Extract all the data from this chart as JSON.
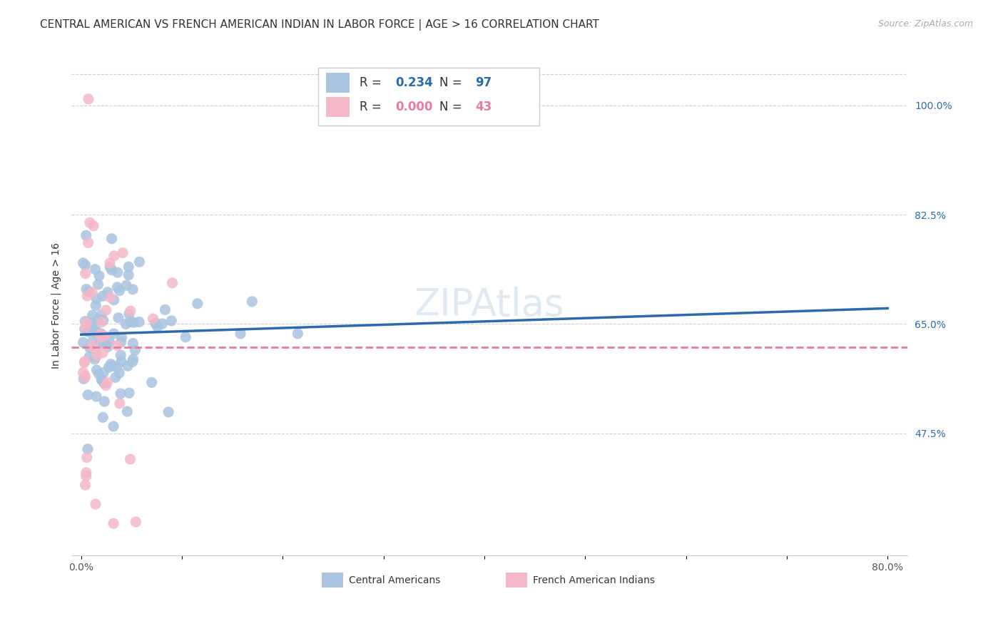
{
  "title": "CENTRAL AMERICAN VS FRENCH AMERICAN INDIAN IN LABOR FORCE | AGE > 16 CORRELATION CHART",
  "source": "Source: ZipAtlas.com",
  "ylabel": "In Labor Force | Age > 16",
  "xlim": [
    -0.01,
    0.82
  ],
  "ylim": [
    0.28,
    1.08
  ],
  "yticks": [
    0.475,
    0.65,
    0.825,
    1.0
  ],
  "ytick_labels": [
    "47.5%",
    "65.0%",
    "82.5%",
    "100.0%"
  ],
  "blue_R": "0.234",
  "blue_N": "97",
  "pink_R": "0.000",
  "pink_N": "43",
  "blue_color": "#a8c4e0",
  "pink_color": "#f4b8c8",
  "blue_line_color": "#2a6aad",
  "pink_line_color": "#e87a9a",
  "background_color": "#ffffff",
  "legend_label_blue": "Central Americans",
  "legend_label_pink": "French American Indians",
  "watermark": "ZIPAtlas"
}
